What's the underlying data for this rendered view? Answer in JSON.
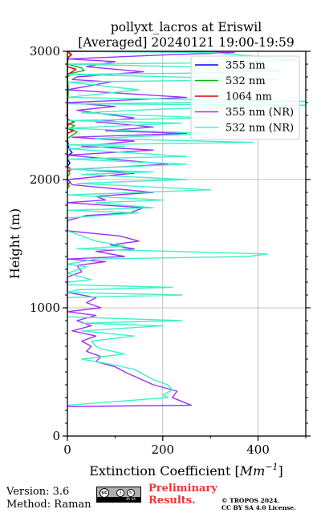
{
  "chart_data": {
    "type": "line",
    "title_line1": "pollyxt_lacros at Eriswil",
    "title_line2": "[Averaged] 20240121 19:00-19:59",
    "xlabel": "Extinction Coefficient [",
    "xlabel_unit": "Mm",
    "xlabel_exp": "−1",
    "xlabel_end": "]",
    "ylabel": "Height (m)",
    "xlim": [
      0,
      500
    ],
    "ylim": [
      0,
      3000
    ],
    "xticks": [
      0,
      200,
      400
    ],
    "xtick_labels": [
      "0",
      "200",
      "400"
    ],
    "yticks": [
      0,
      1000,
      2000,
      3000
    ],
    "ytick_labels": [
      "0",
      "1000",
      "2000",
      "3000"
    ],
    "grid": true,
    "legend_position": "top-right",
    "series": [
      {
        "name": "355 nm",
        "color": "#0000ff",
        "points": [
          [
            0,
            2900
          ],
          [
            0,
            2320
          ],
          [
            3,
            2240
          ],
          [
            10,
            2210
          ],
          [
            2,
            2190
          ],
          [
            0,
            2160
          ],
          [
            5,
            2130
          ],
          [
            0,
            2100
          ]
        ]
      },
      {
        "name": "532 nm",
        "color": "#00bb00",
        "points": [
          [
            0,
            3000
          ],
          [
            8,
            2980
          ],
          [
            2,
            2950
          ],
          [
            0,
            2900
          ],
          [
            30,
            2870
          ],
          [
            35,
            2850
          ],
          [
            10,
            2830
          ],
          [
            0,
            2800
          ],
          [
            2,
            2700
          ],
          [
            0,
            2560
          ],
          [
            0,
            2440
          ],
          [
            15,
            2420
          ],
          [
            5,
            2400
          ],
          [
            20,
            2370
          ],
          [
            8,
            2340
          ],
          [
            0,
            2320
          ],
          [
            0,
            2080
          ],
          [
            5,
            2050
          ],
          [
            0,
            2020
          ],
          [
            0,
            1970
          ],
          [
            4,
            1950
          ],
          [
            0,
            1930
          ]
        ]
      },
      {
        "name": "1064 nm",
        "color": "#dd0000",
        "points": [
          [
            0,
            3000
          ],
          [
            8,
            2970
          ],
          [
            0,
            2950
          ],
          [
            0,
            2880
          ],
          [
            18,
            2860
          ],
          [
            10,
            2840
          ],
          [
            0,
            2820
          ],
          [
            0,
            2470
          ],
          [
            14,
            2450
          ],
          [
            2,
            2430
          ],
          [
            0,
            2400
          ],
          [
            12,
            2380
          ],
          [
            0,
            2360
          ],
          [
            0,
            2100
          ],
          [
            8,
            2080
          ],
          [
            0,
            2060
          ],
          [
            0,
            2000
          ],
          [
            6,
            1980
          ],
          [
            0,
            1960
          ]
        ]
      },
      {
        "name": "355 nm (NR)",
        "color": "#9b30ff",
        "points": [
          [
            0,
            3000
          ],
          [
            350,
            2990
          ],
          [
            190,
            2970
          ],
          [
            0,
            2940
          ],
          [
            100,
            2920
          ],
          [
            40,
            2880
          ],
          [
            160,
            2840
          ],
          [
            20,
            2800
          ],
          [
            10,
            2780
          ],
          [
            90,
            2760
          ],
          [
            0,
            2700
          ],
          [
            250,
            2640
          ],
          [
            0,
            2600
          ],
          [
            100,
            2570
          ],
          [
            20,
            2540
          ],
          [
            140,
            2480
          ],
          [
            60,
            2450
          ],
          [
            180,
            2410
          ],
          [
            80,
            2380
          ],
          [
            250,
            2360
          ],
          [
            10,
            2330
          ],
          [
            140,
            2300
          ],
          [
            30,
            2260
          ],
          [
            180,
            2230
          ],
          [
            0,
            2190
          ],
          [
            210,
            2120
          ],
          [
            20,
            2080
          ],
          [
            140,
            2050
          ],
          [
            0,
            2000
          ],
          [
            10,
            1960
          ],
          [
            180,
            1900
          ],
          [
            60,
            1870
          ],
          [
            80,
            1840
          ],
          [
            0,
            1820
          ],
          [
            160,
            1780
          ],
          [
            130,
            1740
          ],
          [
            40,
            1720
          ],
          [
            0,
            1680
          ],
          [
            0,
            1600
          ],
          [
            110,
            1560
          ],
          [
            150,
            1520
          ],
          [
            90,
            1490
          ],
          [
            140,
            1460
          ],
          [
            60,
            1440
          ],
          [
            120,
            1400
          ],
          [
            0,
            1380
          ],
          [
            80,
            1360
          ],
          [
            20,
            1330
          ],
          [
            30,
            1280
          ],
          [
            0,
            1240
          ],
          [
            0,
            1120
          ],
          [
            60,
            1080
          ],
          [
            40,
            1040
          ],
          [
            70,
            1000
          ],
          [
            0,
            970
          ],
          [
            60,
            940
          ],
          [
            20,
            900
          ],
          [
            50,
            860
          ],
          [
            10,
            820
          ],
          [
            60,
            780
          ],
          [
            30,
            740
          ],
          [
            50,
            700
          ],
          [
            40,
            660
          ],
          [
            70,
            620
          ],
          [
            60,
            580
          ],
          [
            100,
            540
          ],
          [
            120,
            500
          ],
          [
            150,
            450
          ],
          [
            180,
            400
          ],
          [
            230,
            350
          ],
          [
            220,
            300
          ],
          [
            240,
            270
          ],
          [
            260,
            240
          ],
          [
            0,
            230
          ]
        ]
      },
      {
        "name": "532 nm (NR)",
        "color": "#40f0c8",
        "points": [
          [
            0,
            3000
          ],
          [
            300,
            2990
          ],
          [
            400,
            2960
          ],
          [
            480,
            2930
          ],
          [
            300,
            2910
          ],
          [
            0,
            2900
          ],
          [
            250,
            2880
          ],
          [
            450,
            2850
          ],
          [
            270,
            2830
          ],
          [
            0,
            2820
          ],
          [
            440,
            2780
          ],
          [
            0,
            2760
          ],
          [
            150,
            2700
          ],
          [
            0,
            2640
          ],
          [
            500,
            2610
          ],
          [
            0,
            2590
          ],
          [
            500,
            2580
          ],
          [
            200,
            2550
          ],
          [
            30,
            2520
          ],
          [
            300,
            2480
          ],
          [
            0,
            2460
          ],
          [
            240,
            2440
          ],
          [
            0,
            2400
          ],
          [
            300,
            2360
          ],
          [
            60,
            2320
          ],
          [
            390,
            2290
          ],
          [
            0,
            2270
          ],
          [
            120,
            2260
          ],
          [
            0,
            2240
          ],
          [
            250,
            2180
          ],
          [
            0,
            2160
          ],
          [
            250,
            2120
          ],
          [
            0,
            2080
          ],
          [
            180,
            2060
          ],
          [
            30,
            2040
          ],
          [
            250,
            2000
          ],
          [
            20,
            1970
          ],
          [
            300,
            1920
          ],
          [
            0,
            1880
          ],
          [
            200,
            1840
          ],
          [
            60,
            1820
          ],
          [
            180,
            1780
          ],
          [
            0,
            1760
          ],
          [
            150,
            1740
          ],
          [
            0,
            1700
          ],
          [
            0,
            1600
          ],
          [
            60,
            1520
          ],
          [
            120,
            1480
          ],
          [
            20,
            1460
          ],
          [
            420,
            1420
          ],
          [
            380,
            1400
          ],
          [
            60,
            1380
          ],
          [
            0,
            1340
          ],
          [
            40,
            1320
          ],
          [
            0,
            1270
          ],
          [
            50,
            1220
          ],
          [
            0,
            1200
          ],
          [
            0,
            1180
          ],
          [
            220,
            1160
          ],
          [
            20,
            1140
          ],
          [
            0,
            1120
          ],
          [
            240,
            1100
          ],
          [
            0,
            1080
          ],
          [
            0,
            930
          ],
          [
            240,
            900
          ],
          [
            30,
            880
          ],
          [
            200,
            860
          ],
          [
            30,
            820
          ],
          [
            140,
            780
          ],
          [
            50,
            740
          ],
          [
            60,
            700
          ],
          [
            70,
            680
          ],
          [
            120,
            640
          ],
          [
            30,
            600
          ],
          [
            90,
            560
          ],
          [
            140,
            520
          ],
          [
            160,
            480
          ],
          [
            180,
            440
          ],
          [
            210,
            400
          ],
          [
            220,
            360
          ],
          [
            200,
            320
          ],
          [
            210,
            300
          ],
          [
            0,
            240
          ]
        ]
      }
    ]
  },
  "footer": {
    "version": "Version: 3.6",
    "method": "Method: Raman",
    "preliminary_line1": "Preliminary",
    "preliminary_line2": "Results.",
    "copyright_line1": "© TROPOS 2024.",
    "copyright_line2": "CC BY SA 4.0 License.",
    "license_badge_text": "BY SA"
  }
}
